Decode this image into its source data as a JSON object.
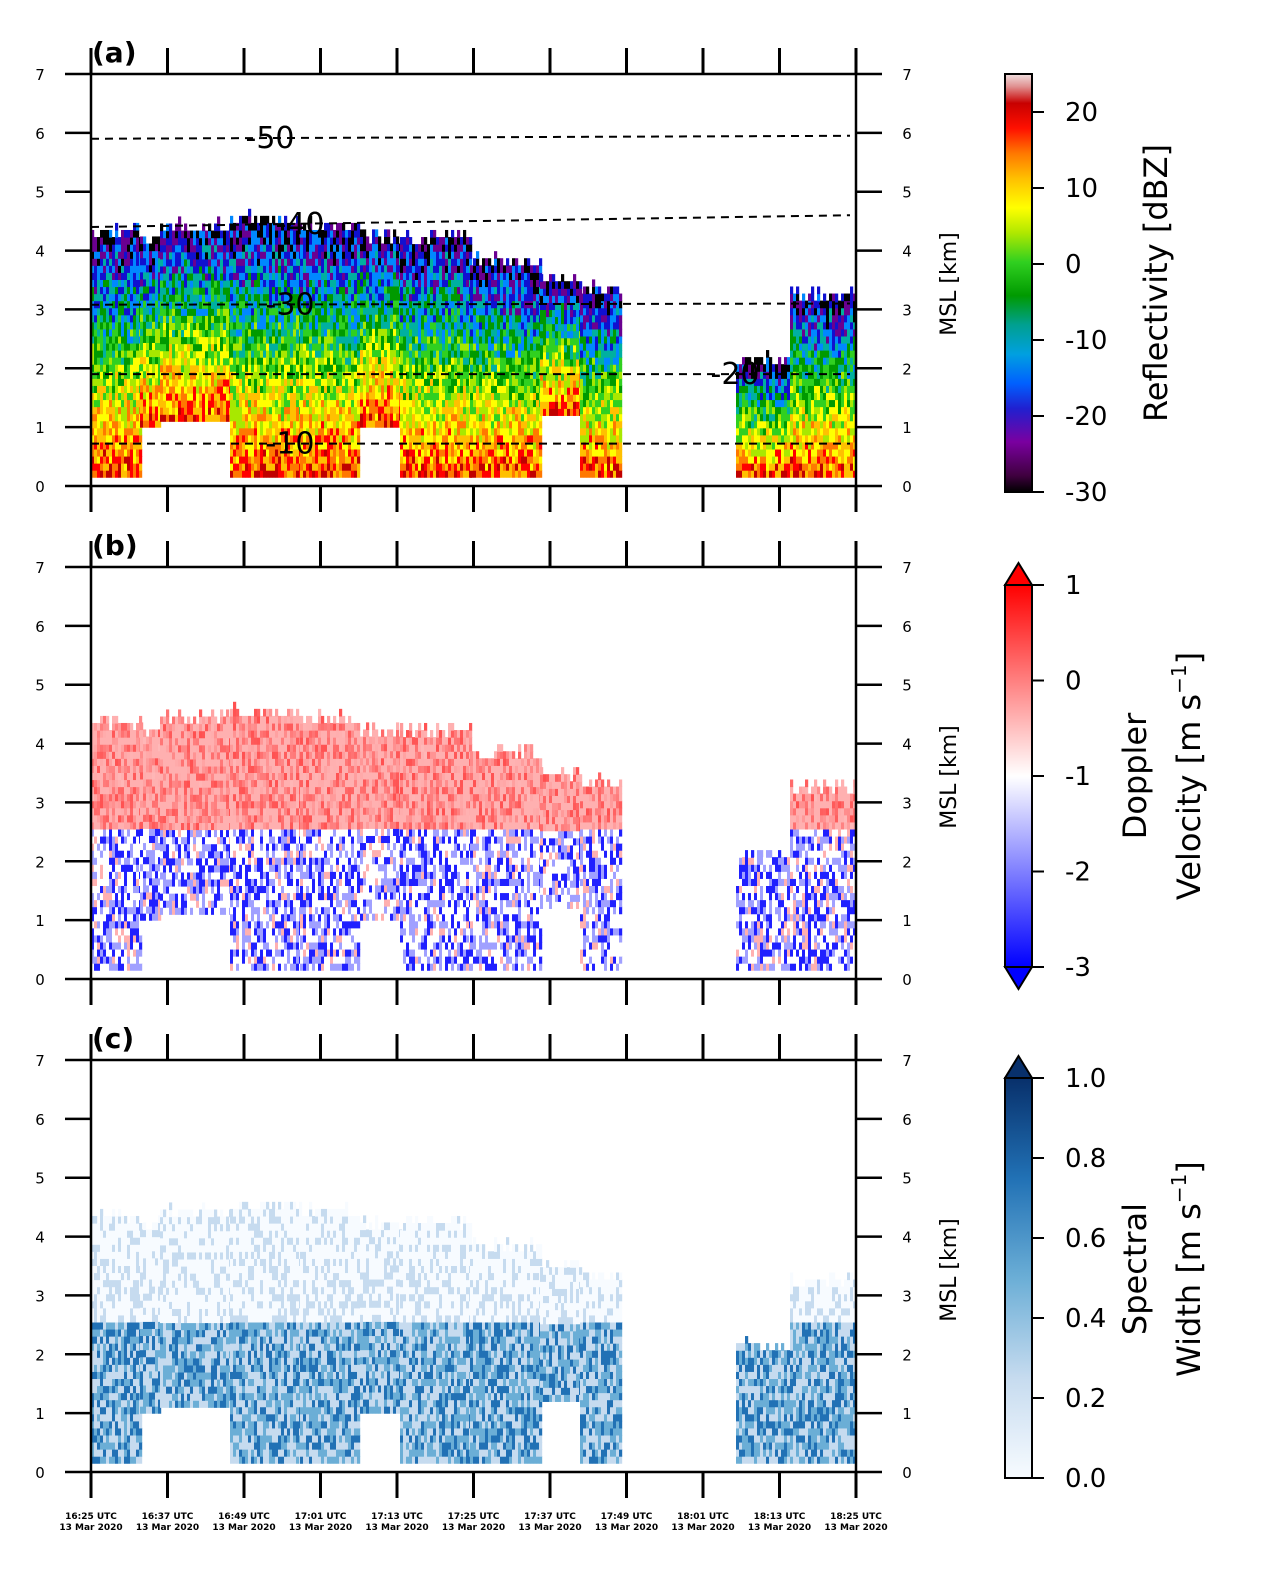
{
  "chart_data": [
    {
      "type": "heatmap",
      "panel_label": "(a)",
      "variable": "Reflectivity",
      "colorbar_label": "Reflectivity [dBZ]",
      "colorbar_ticks": [
        "20",
        "10",
        "0",
        "-10",
        "-20",
        "-30"
      ],
      "colorbar_range": [
        -30,
        25
      ],
      "right_ylabel": "MSL [km]",
      "ylim": [
        0,
        7
      ],
      "yticks": [
        "0",
        "1",
        "2",
        "3",
        "4",
        "5",
        "6",
        "7"
      ],
      "temperature_contours": [
        {
          "label": "-50",
          "height_km": [
            5.9,
            5.95
          ]
        },
        {
          "label": "-40",
          "height_km": [
            4.4,
            4.6
          ]
        },
        {
          "label": "-30",
          "height_km": [
            3.08,
            3.1
          ]
        },
        {
          "label": "-20",
          "height_km": [
            1.9,
            1.9
          ]
        },
        {
          "label": "-10",
          "height_km": [
            0.72,
            0.72
          ]
        }
      ],
      "colors": [
        "#000000",
        "#6a0090",
        "#1010d0",
        "#0088ff",
        "#00b0a0",
        "#009a00",
        "#30d020",
        "#a8e800",
        "#ffff00",
        "#ffc000",
        "#ff7800",
        "#ff0000",
        "#c00000",
        "#e0b0b0"
      ]
    },
    {
      "type": "heatmap",
      "panel_label": "(b)",
      "variable": "Doppler Velocity",
      "colorbar_label_line1": "Doppler",
      "colorbar_label_line2": "Velocity [m s",
      "colorbar_label_sup": "−1",
      "colorbar_label_end": "]",
      "colorbar_ticks": [
        "1",
        "0",
        "-1",
        "-2",
        "-3"
      ],
      "colorbar_range": [
        -3,
        1
      ],
      "right_ylabel": "MSL [km]",
      "ylim": [
        0,
        7
      ],
      "yticks": [
        "0",
        "1",
        "2",
        "3",
        "4",
        "5",
        "6",
        "7"
      ],
      "colors": [
        "#0000ff",
        "#ffffff",
        "#ff0000"
      ]
    },
    {
      "type": "heatmap",
      "panel_label": "(c)",
      "variable": "Spectral Width",
      "colorbar_label_line1": "Spectral",
      "colorbar_label_line2": "Width [m s",
      "colorbar_label_sup": "−1",
      "colorbar_label_end": "]",
      "colorbar_ticks": [
        "1.0",
        "0.8",
        "0.6",
        "0.4",
        "0.2",
        "0.0"
      ],
      "colorbar_range": [
        0.0,
        1.0
      ],
      "right_ylabel": "MSL [km]",
      "ylim": [
        0,
        7
      ],
      "yticks": [
        "0",
        "1",
        "2",
        "3",
        "4",
        "5",
        "6",
        "7"
      ],
      "colors": [
        "#f7fbff",
        "#c6dbef",
        "#6baed6",
        "#2171b5",
        "#08306b"
      ]
    }
  ],
  "xaxis": {
    "times": [
      "16:25 UTC",
      "16:37 UTC",
      "16:49 UTC",
      "17:01 UTC",
      "17:13 UTC",
      "17:25 UTC",
      "17:37 UTC",
      "17:49 UTC",
      "18:01 UTC",
      "18:13 UTC",
      "18:25 UTC"
    ],
    "date": "13 Mar 2020"
  }
}
